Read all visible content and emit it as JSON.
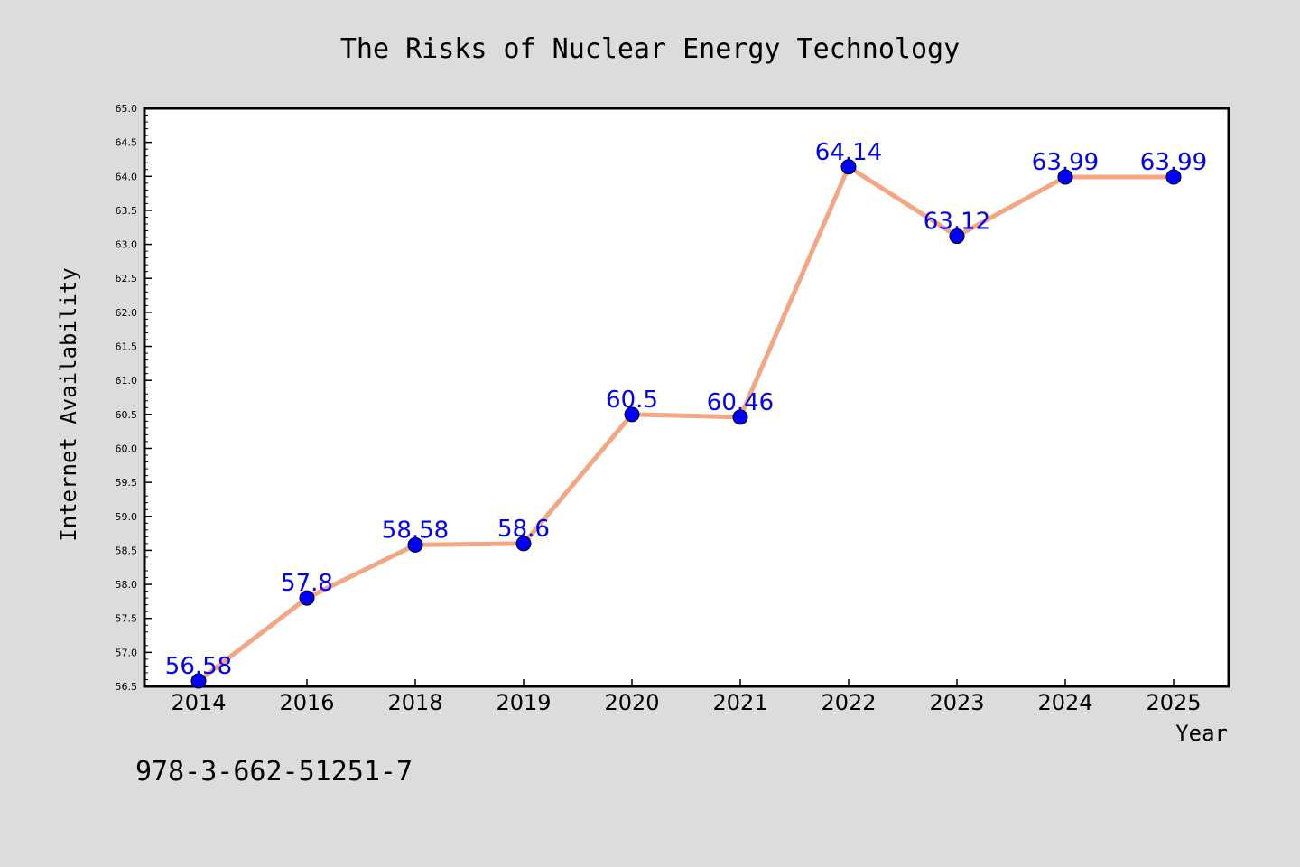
{
  "chart_data": {
    "type": "line",
    "title": "The Risks of Nuclear Energy Technology",
    "xlabel": "Year",
    "ylabel": "Internet Availability",
    "categories": [
      "2014",
      "2016",
      "2018",
      "2019",
      "2020",
      "2021",
      "2022",
      "2023",
      "2024",
      "2025"
    ],
    "series": [
      {
        "values": [
          56.58,
          57.8,
          58.58,
          58.6,
          60.5,
          60.46,
          64.14,
          63.12,
          63.99,
          63.99
        ],
        "labels": [
          "56.58",
          "57.8",
          "58.58",
          "58.6",
          "60.5",
          "60.46",
          "64.14",
          "63.12",
          "63.99",
          "63.99"
        ]
      }
    ],
    "ylim": [
      56.5,
      65.0
    ],
    "yticks": [
      "56.5",
      "57.0",
      "57.5",
      "58.0",
      "58.5",
      "59.0",
      "59.5",
      "60.0",
      "60.5",
      "61.0",
      "61.5",
      "62.0",
      "62.5",
      "63.0",
      "63.5",
      "64.0",
      "64.5",
      "65.0"
    ],
    "grid": false,
    "legend": "none",
    "colors": {
      "line": "#f4a582",
      "marker": "#0000ff",
      "label": "#0000ff",
      "plot_background": "#ffffff",
      "page_background": "#dcdcdc"
    }
  },
  "footer_note": "978-3-662-51251-7"
}
